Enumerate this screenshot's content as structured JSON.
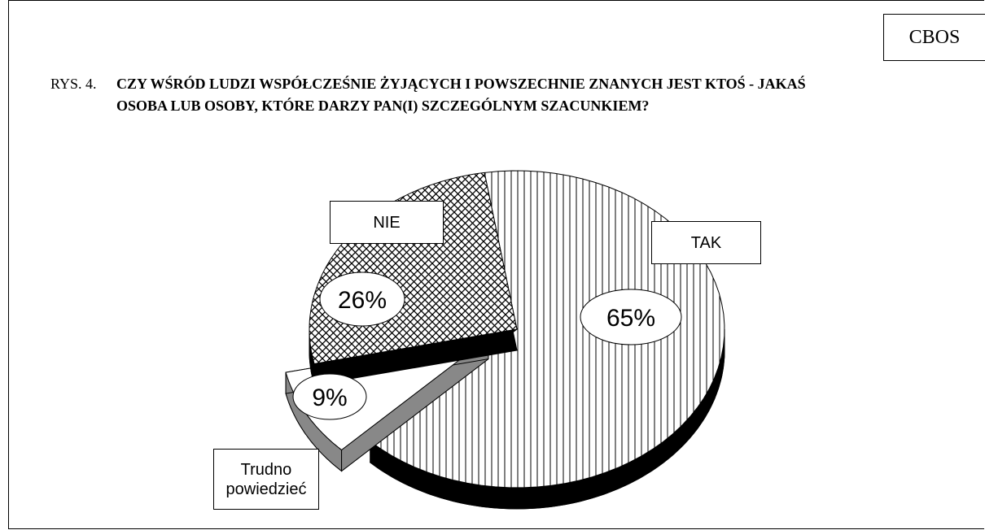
{
  "chart_data": {
    "type": "pie",
    "source": "CBOS",
    "figure_label": "RYS. 4.",
    "title": "CZY WŚRÓD LUDZI WSPÓŁCZEŚNIE ŻYJĄCYCH I POWSZECHNIE ZNANYCH JEST KTOŚ - JAKAŚ OSOBA LUB OSOBY, KTÓRE DARZY PAN(I) SZCZEGÓLNYM SZACUNKIEM?",
    "categories": [
      "TAK",
      "Trudno powiedzieć",
      "NIE"
    ],
    "values": [
      65,
      9,
      26
    ],
    "value_labels": [
      "65%",
      "9%",
      "26%"
    ]
  }
}
